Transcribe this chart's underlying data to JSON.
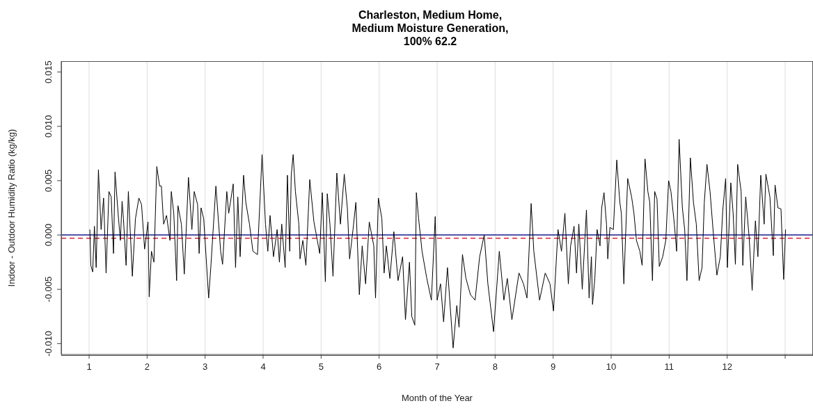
{
  "chart_data": {
    "type": "line",
    "title": "Charleston, Medium Home,\nMedium Moisture Generation,\n100% 62.2",
    "xlabel": "Month of the Year",
    "ylabel": "Indoor - Outdoor Humidity Ratio (kg/kg)",
    "xlim": [
      0.52,
      13.48
    ],
    "xticks": [
      1,
      2,
      3,
      4,
      5,
      6,
      7,
      8,
      9,
      10,
      11,
      12,
      {
        "value": 13,
        "label": null
      }
    ],
    "ylim": [
      -0.011,
      0.016
    ],
    "yticks": [
      {
        "value": -0.01,
        "label": "-0.010"
      },
      {
        "value": -0.005,
        "label": "-0.005"
      },
      {
        "value": 0,
        "label": "0.000"
      },
      {
        "value": 0.005,
        "label": "0.005"
      },
      {
        "value": 0.01,
        "label": "0.010"
      },
      {
        "value": 0.015,
        "label": "0.015"
      }
    ],
    "grid": "x",
    "ref_lines": [
      {
        "axis": "y",
        "value": 0,
        "label": null,
        "color": "#1a1a8c",
        "line_style": "solid"
      },
      {
        "axis": "y",
        "value": -0.0003,
        "label": null,
        "color": "#dd2233",
        "line_style": "dashed"
      }
    ],
    "x": [
      1.013,
      1.03,
      1.062,
      1.092,
      1.122,
      1.161,
      1.207,
      1.25,
      1.293,
      1.342,
      1.381,
      1.421,
      1.447,
      1.5,
      1.539,
      1.569,
      1.592,
      1.638,
      1.677,
      1.746,
      1.799,
      1.858,
      1.904,
      1.957,
      1.976,
      2.016,
      2.036,
      2.075,
      2.118,
      2.167,
      2.216,
      2.246,
      2.285,
      2.335,
      2.394,
      2.417,
      2.46,
      2.509,
      2.532,
      2.591,
      2.641,
      2.713,
      2.772,
      2.812,
      2.871,
      2.897,
      2.93,
      2.976,
      3.061,
      3.098,
      3.186,
      3.268,
      3.301,
      3.374,
      3.407,
      3.485,
      3.525,
      3.564,
      3.604,
      3.663,
      3.702,
      3.765,
      3.824,
      3.903,
      3.982,
      4.041,
      4.081,
      4.12,
      4.179,
      4.242,
      4.281,
      4.321,
      4.38,
      4.419,
      4.459,
      4.485,
      4.518,
      4.557,
      4.616,
      4.636,
      4.685,
      4.738,
      4.804,
      4.876,
      4.935,
      4.975,
      5.021,
      5.073,
      5.106,
      5.152,
      5.205,
      5.271,
      5.333,
      5.399,
      5.452,
      5.491,
      5.55,
      5.599,
      5.659,
      5.708,
      5.767,
      5.83,
      5.908,
      5.938,
      5.987,
      6.047,
      6.086,
      6.125,
      6.185,
      6.254,
      6.326,
      6.405,
      6.454,
      6.523,
      6.563,
      6.615,
      6.642,
      6.681,
      6.74,
      6.822,
      6.901,
      6.967,
      7.0,
      7.059,
      7.112,
      7.178,
      7.276,
      7.339,
      7.378,
      7.437,
      7.497,
      7.575,
      7.654,
      7.733,
      7.812,
      7.875,
      7.973,
      8.072,
      8.151,
      8.21,
      8.289,
      8.411,
      8.489,
      8.549,
      8.621,
      8.667,
      8.766,
      8.864,
      8.946,
      9.006,
      9.084,
      9.144,
      9.203,
      9.262,
      9.301,
      9.361,
      9.403,
      9.443,
      9.502,
      9.574,
      9.62,
      9.66,
      9.679,
      9.719,
      9.758,
      9.808,
      9.837,
      9.877,
      9.92,
      9.942,
      9.979,
      10.038,
      10.097,
      10.15,
      10.176,
      10.219,
      10.285,
      10.353,
      10.393,
      10.436,
      10.495,
      10.534,
      10.584,
      10.633,
      10.666,
      10.712,
      10.751,
      10.791,
      10.83,
      10.889,
      10.942,
      10.991,
      11.031,
      11.09,
      11.129,
      11.172,
      11.228,
      11.268,
      11.307,
      11.366,
      11.419,
      11.468,
      11.517,
      11.567,
      11.606,
      11.652,
      11.705,
      11.764,
      11.823,
      11.882,
      11.925,
      11.974,
      12.004,
      12.063,
      12.103,
      12.142,
      12.181,
      12.241,
      12.27,
      12.32,
      12.379,
      12.431,
      12.487,
      12.53,
      12.579,
      12.638,
      12.668,
      12.737,
      12.796,
      12.826,
      12.875,
      12.928,
      12.974,
      13.007
    ],
    "values": [
      0.0005,
      -0.0028,
      -0.0034,
      0.0008,
      -0.003,
      0.006,
      0.0005,
      0.0034,
      -0.0035,
      0.004,
      0.0035,
      -0.0017,
      0.0058,
      0.002,
      -0.0005,
      0.0031,
      0.0015,
      -0.0028,
      0.004,
      -0.0038,
      0.0015,
      0.0034,
      0.0028,
      -0.0013,
      -0.0005,
      0.0012,
      -0.0057,
      -0.0015,
      -0.0025,
      0.0063,
      0.0045,
      0.0045,
      0.001,
      0.0018,
      -0.0005,
      0.004,
      0.002,
      -0.0042,
      0.0027,
      0.001,
      -0.0036,
      0.0053,
      0.0005,
      0.004,
      0.0028,
      -0.0017,
      0.0025,
      0.0015,
      -0.0058,
      -0.003,
      0.0045,
      -0.0015,
      -0.0027,
      0.004,
      0.002,
      0.0047,
      -0.003,
      0.0035,
      -0.002,
      0.0055,
      0.003,
      0.001,
      -0.0015,
      -0.0018,
      0.0074,
      0.001,
      -0.0015,
      0.0018,
      -0.002,
      0.0005,
      -0.0025,
      0.001,
      -0.003,
      0.0055,
      -0.0015,
      0.0055,
      0.0074,
      0.004,
      0.001,
      -0.0022,
      -0.0005,
      -0.0028,
      0.0051,
      0.0012,
      -0.0005,
      -0.0017,
      0.0039,
      -0.0043,
      0.0038,
      0.001,
      -0.0038,
      0.0057,
      0.001,
      0.0056,
      0.0025,
      -0.0022,
      0.0005,
      0.003,
      -0.0055,
      -0.001,
      -0.0045,
      0.0012,
      -0.001,
      -0.0058,
      0.0034,
      0.0015,
      -0.0035,
      -0.001,
      -0.004,
      0.0003,
      -0.0042,
      -0.002,
      -0.0078,
      -0.0025,
      -0.0075,
      -0.0083,
      0.0039,
      0.0015,
      -0.0015,
      -0.004,
      -0.006,
      0.0017,
      -0.006,
      -0.0045,
      -0.008,
      -0.003,
      -0.0104,
      -0.0065,
      -0.0085,
      -0.0018,
      -0.004,
      -0.0055,
      -0.006,
      -0.002,
      0,
      -0.0045,
      -0.0089,
      -0.0015,
      -0.006,
      -0.004,
      -0.0078,
      -0.0035,
      -0.0045,
      -0.0058,
      0.0029,
      -0.0015,
      -0.006,
      -0.0035,
      -0.0045,
      -0.007,
      0.0005,
      -0.0015,
      0.002,
      -0.0045,
      -0.001,
      0.0008,
      -0.0035,
      0.001,
      -0.005,
      0.0023,
      -0.0058,
      -0.002,
      -0.0064,
      -0.004,
      0.0005,
      -0.001,
      0.0025,
      0.0039,
      0.001,
      -0.0022,
      0.0007,
      0.0005,
      0.0069,
      0.003,
      0.002,
      -0.0045,
      0.0052,
      0.0035,
      0.002,
      -0.0005,
      -0.0015,
      -0.0028,
      0.007,
      0.004,
      0.003,
      -0.0042,
      0.004,
      0.0033,
      -0.0029,
      -0.002,
      -0.0005,
      0.005,
      0.004,
      0.001,
      -0.0015,
      0.0088,
      0.0025,
      0.0005,
      -0.0042,
      0.0071,
      0.003,
      0.001,
      -0.0042,
      -0.003,
      0.003,
      0.0065,
      0.004,
      0,
      -0.0037,
      -0.002,
      0.0023,
      0.0052,
      -0.003,
      0.0048,
      0.002,
      -0.0027,
      0.0065,
      0.004,
      -0.0028,
      0.0035,
      -0.0002,
      -0.0051,
      0.0013,
      -0.002,
      0.0055,
      0.001,
      0.0056,
      0.0035,
      -0.0019,
      0.0046,
      0.0025,
      0.0024,
      -0.0041,
      0.0005
    ],
    "color": "#000000"
  }
}
